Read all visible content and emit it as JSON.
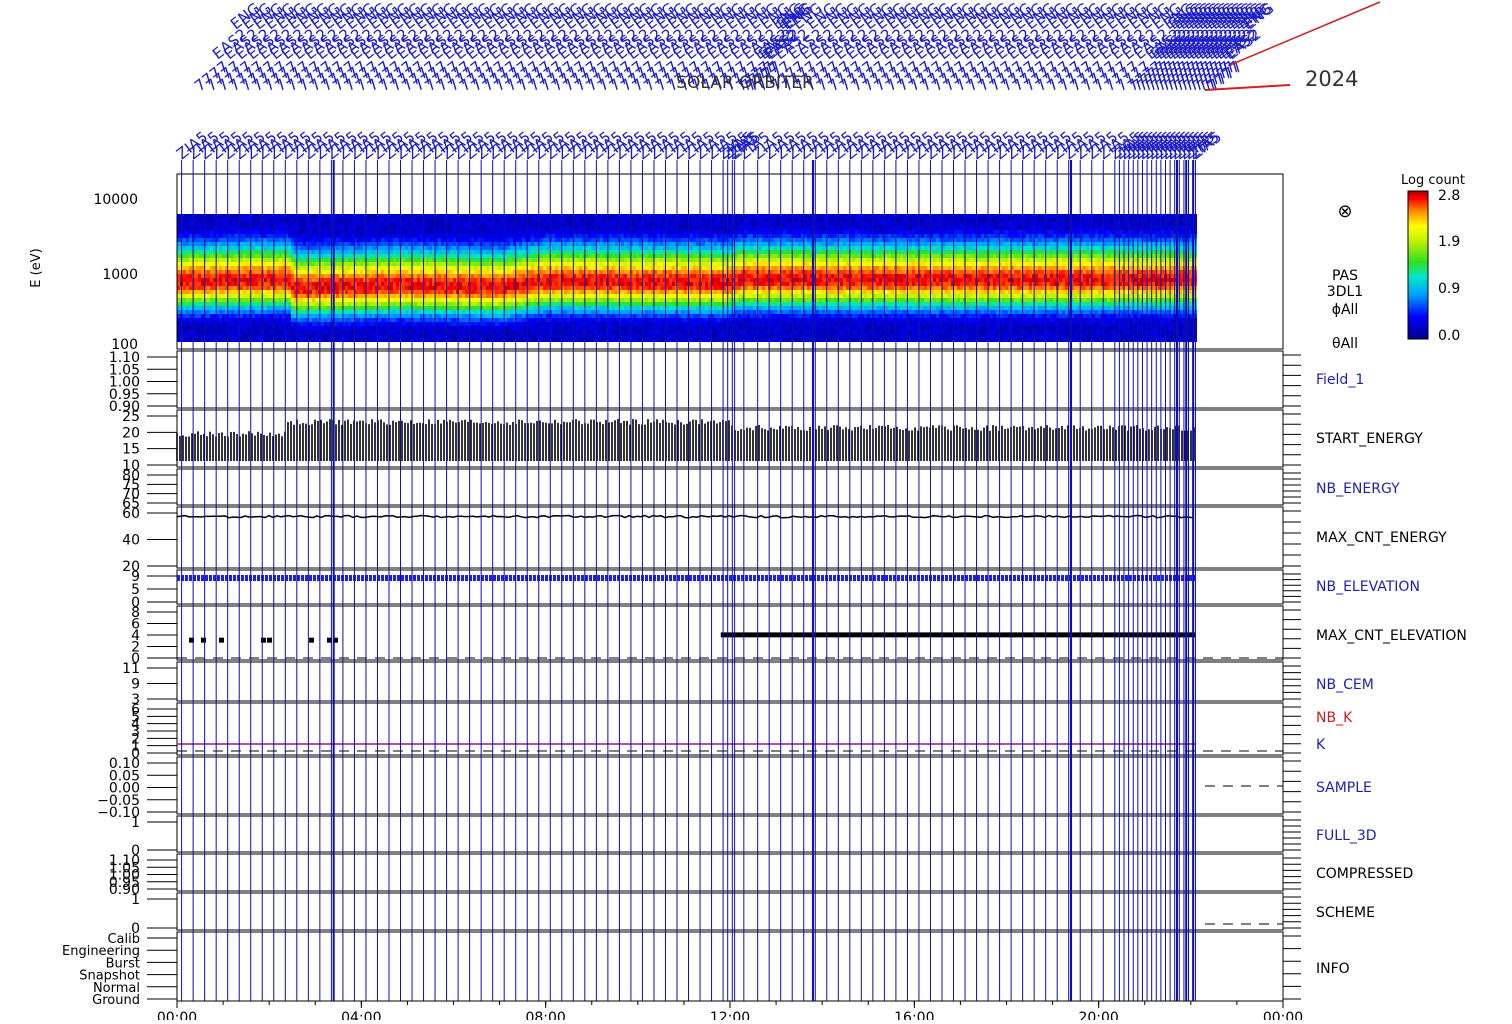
{
  "header": {
    "title": "SOLAR   ORBITER",
    "date_fragment": "2024",
    "marker_label_a": "ENG",
    "marker_label_b": "EAS2",
    "marker_label_c": "ZIA5",
    "marker_label_d": "7777"
  },
  "colorbar": {
    "title": "Log count",
    "ticks": [
      "2.8",
      "1.9",
      "0.9",
      "0.0"
    ]
  },
  "x_axis": {
    "ticks": [
      "00:00",
      "04:00",
      "08:00",
      "12:00",
      "16:00",
      "20:00",
      "00:00"
    ]
  },
  "spectrogram": {
    "ylabel": "E (eV)",
    "ticks": [
      "10000",
      "1000",
      "100"
    ],
    "right_labels": [
      "PAS",
      "3DL1",
      "ϕAll",
      "θAll"
    ],
    "symbol": "⊗"
  },
  "panels": [
    {
      "label": "Field_1",
      "label_color": "#1f1fb4",
      "ticks": [
        "1.10",
        "1.05",
        "1.00",
        "0.95",
        "0.90"
      ]
    },
    {
      "label": "START_ENERGY",
      "label_color": "#000000",
      "ticks": [
        "25",
        "20",
        "15",
        "10"
      ]
    },
    {
      "label": "NB_ENERGY",
      "label_color": "#1f1fb4",
      "ticks": [
        "80",
        "75",
        "70",
        "65"
      ]
    },
    {
      "label": "MAX_CNT_ENERGY",
      "label_color": "#000000",
      "ticks": [
        "60",
        "40",
        "20"
      ]
    },
    {
      "label": "NB_ELEVATION",
      "label_color": "#1f1fb4",
      "ticks": [
        "9",
        "5",
        "0"
      ]
    },
    {
      "label": "MAX_CNT_ELEVATION",
      "label_color": "#000000",
      "ticks": [
        "8",
        "6",
        "4",
        "2",
        "0"
      ]
    },
    {
      "label": "NB_CEM",
      "label_color": "#1f1fb4",
      "ticks": [
        "11",
        "9",
        "3"
      ]
    },
    {
      "label": "NB_K",
      "label_color": "#c81e1e",
      "label2": "K",
      "label2_color": "#1f1fb4",
      "ticks": [
        "6",
        "5",
        "4",
        "3",
        "2",
        "1",
        "0"
      ]
    },
    {
      "label": "SAMPLE",
      "label_color": "#1f1fb4",
      "ticks": [
        "0.10",
        "0.05",
        "0.00",
        "−0.05",
        "−0.10"
      ]
    },
    {
      "label": "FULL_3D",
      "label_color": "#1f1fb4",
      "ticks": [
        "1",
        "0"
      ]
    },
    {
      "label": "COMPRESSED",
      "label_color": "#000000",
      "ticks": [
        "1.10",
        "1.05",
        "1.00",
        "0.95",
        "0.90"
      ]
    },
    {
      "label": "SCHEME",
      "label_color": "#000000",
      "ticks": [
        "1",
        "0"
      ]
    },
    {
      "label": "INFO",
      "label_color": "#000000",
      "ticks": [
        "Calib",
        "Engineering",
        "Burst",
        "Snapshot",
        "Normal",
        "Ground"
      ]
    }
  ],
  "colors": {
    "marker_lines": "#0d0db3",
    "nb_k_line": "#8b1a8b",
    "axis": "#000000"
  },
  "chart_data": {
    "type": "heatmap",
    "title": "SOLAR   ORBITER",
    "xlabel": "",
    "ylabel": "E (eV)",
    "x_range_hours": [
      0,
      24
    ],
    "y_range_eV": [
      100,
      10000
    ],
    "y_scale": "log",
    "colorbar_title": "Log count",
    "colorbar_range": [
      0.0,
      2.8
    ],
    "peak_energy_eV": [
      {
        "t": 0,
        "e": 620
      },
      {
        "t": 2.4,
        "e": 640
      },
      {
        "t": 2.5,
        "e": 520
      },
      {
        "t": 5,
        "e": 560
      },
      {
        "t": 7,
        "e": 530
      },
      {
        "t": 8,
        "e": 620
      },
      {
        "t": 11.9,
        "e": 600
      },
      {
        "t": 12.2,
        "e": 650
      },
      {
        "t": 16,
        "e": 640
      },
      {
        "t": 20,
        "e": 640
      },
      {
        "t": 22.1,
        "e": 640
      }
    ],
    "data_end_hour": 22.1,
    "start_energy": {
      "before_hour": 2.4,
      "low": 10,
      "high": 19,
      "mid_high": 23,
      "after_hour": 12,
      "late_high": 21
    },
    "max_cnt_energy": {
      "value": 59,
      "range": [
        0,
        70
      ]
    },
    "nb_elevation": {
      "value": 9
    },
    "max_cnt_elevation": {
      "early_value": 3,
      "late_value": 4,
      "late_start_hour": 11.8
    },
    "nb_k": {
      "value": 1
    },
    "vertical_markers_hours": [
      0.1,
      0.35,
      0.6,
      0.85,
      1.1,
      1.35,
      1.6,
      1.85,
      2.1,
      2.35,
      2.6,
      2.85,
      3.1,
      3.35,
      3.6,
      3.85,
      4.1,
      4.35,
      4.6,
      4.85,
      5.1,
      5.35,
      5.6,
      5.85,
      6.1,
      6.35,
      6.6,
      6.85,
      7.1,
      7.35,
      7.6,
      7.85,
      8.1,
      8.35,
      8.6,
      8.85,
      9.1,
      9.35,
      9.6,
      9.85,
      10.1,
      10.35,
      10.6,
      10.85,
      11.1,
      11.35,
      11.6,
      11.85,
      11.95,
      12.05,
      12.1,
      12.3,
      12.6,
      12.85,
      13.1,
      13.35,
      13.6,
      13.85,
      14.1,
      14.35,
      14.6,
      14.85,
      15.1,
      15.35,
      15.6,
      15.85,
      16.1,
      16.35,
      16.6,
      16.85,
      17.1,
      17.35,
      17.6,
      17.85,
      18.1,
      18.35,
      18.6,
      18.85,
      19.1,
      19.35,
      19.6,
      19.85,
      20.1,
      20.35,
      20.45,
      20.55,
      20.65,
      20.75,
      20.85,
      20.95,
      21.05,
      21.15,
      21.25,
      21.35,
      21.45,
      21.55,
      21.65,
      21.75,
      21.85,
      21.95,
      22.05,
      22.1
    ]
  }
}
